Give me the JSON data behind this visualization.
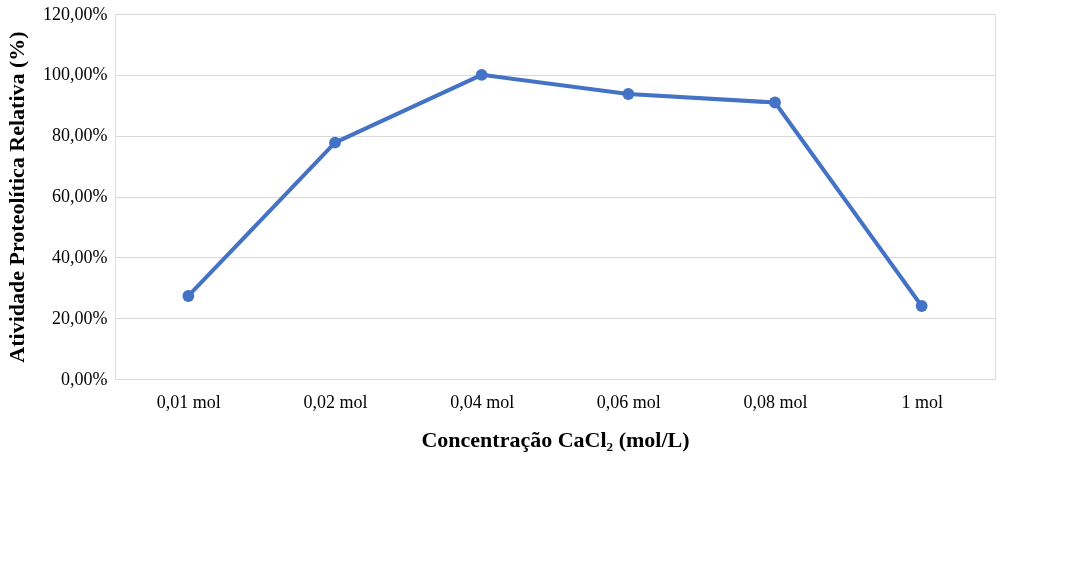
{
  "chart_data": {
    "type": "line",
    "categories": [
      "0,01 mol",
      "0,02 mol",
      "0,04 mol",
      "0,06 mol",
      "0,08 mol",
      "1 mol"
    ],
    "series": [
      {
        "color": "#4472c4",
        "values": [
          27.3,
          77.7,
          100.0,
          93.7,
          90.9,
          24.0
        ]
      }
    ],
    "xlabel": "Concentração CaCl₂ (mol/L)",
    "ylabel": "Atividade Proteolítica Relativa (%)",
    "ylim": [
      0,
      120
    ],
    "yticks": [
      {
        "value": 0,
        "label": "0,00%"
      },
      {
        "value": 20,
        "label": "20,00%"
      },
      {
        "value": 40,
        "label": "40,00%"
      },
      {
        "value": 60,
        "label": "60,00%"
      },
      {
        "value": 80,
        "label": "80,00%"
      },
      {
        "value": 100,
        "label": "100,00%"
      },
      {
        "value": 120,
        "label": "120,00%"
      }
    ],
    "grid": "y",
    "marker": "circle",
    "line_style": "solid",
    "legend": false
  }
}
